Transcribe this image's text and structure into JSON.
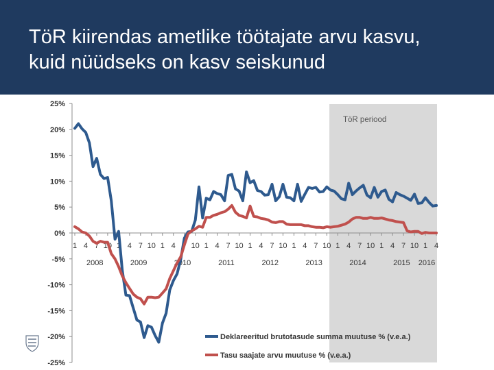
{
  "slide": {
    "title_line1": "TöR kiirendas ametlike töötajate arvu kasvu,",
    "title_line2": "kuid nüüdseks on kasv seiskunud",
    "bg_color": "#1f3a5f"
  },
  "chart_data": {
    "type": "line",
    "title": "",
    "xlabel": "",
    "ylabel": "",
    "ylim": [
      -25,
      25
    ],
    "yticks": [
      25,
      20,
      15,
      10,
      5,
      0,
      -5,
      -10,
      -15,
      -20,
      -25
    ],
    "ytick_labels": [
      "25%",
      "20%",
      "15%",
      "10%",
      "5%",
      "0%",
      "-5%",
      "-10%",
      "-15%",
      "-20%",
      "-25%"
    ],
    "month_tick_labels": [
      "1",
      "4",
      "7",
      "10",
      "1",
      "4",
      "7",
      "10",
      "1",
      "4",
      "7",
      "10",
      "1",
      "4",
      "7",
      "10",
      "1",
      "4",
      "7",
      "10",
      "1",
      "4",
      "7",
      "10",
      "1",
      "4",
      "7",
      "10",
      "1",
      "4",
      "7",
      "10",
      "1",
      "4"
    ],
    "year_labels": [
      "2008",
      "2009",
      "2010",
      "2011",
      "2012",
      "2013",
      "2014",
      "2015",
      "2016"
    ],
    "x_start": "2008-01",
    "x_end": "2016-04",
    "grid": false,
    "legend_position": "bottom-right",
    "shaded_region": {
      "label": "TöR periood",
      "start": "2014-01",
      "end": "2016-04",
      "color": "#d9d9d9"
    },
    "series": [
      {
        "name": "Deklareeritud brutotasude summa muutuse % (v.e.a.)",
        "color": "#2e5a8e",
        "values": [
          20.2,
          21.1,
          20.1,
          19.4,
          17.4,
          12.8,
          14.4,
          11.3,
          10.5,
          10.7,
          6.2,
          -1.2,
          0.3,
          -7.2,
          -12.0,
          -12.1,
          -14.5,
          -16.8,
          -17.2,
          -20.2,
          -17.9,
          -18.2,
          -19.8,
          -21.1,
          -17.4,
          -15.5,
          -11.0,
          -9.2,
          -7.9,
          -5.1,
          -1.0,
          0.2,
          0.3,
          2.5,
          8.9,
          2.9,
          6.7,
          6.4,
          8.0,
          7.6,
          7.4,
          6.2,
          11.1,
          11.3,
          8.5,
          8.1,
          6.2,
          11.8,
          9.7,
          10.1,
          8.2,
          8.0,
          7.3,
          7.4,
          9.4,
          6.2,
          7.0,
          9.4,
          6.9,
          6.8,
          6.2,
          9.4,
          6.1,
          7.5,
          8.8,
          8.6,
          8.8,
          7.9,
          8.0,
          8.9,
          8.3,
          8.1,
          7.4,
          6.6,
          6.4,
          9.6,
          7.4,
          8.1,
          8.7,
          9.2,
          7.3,
          6.8,
          8.8,
          6.9,
          8.0,
          8.3,
          6.5,
          6.0,
          7.8,
          7.4,
          7.1,
          6.7,
          6.3,
          7.5,
          5.7,
          5.8,
          6.8,
          5.9,
          5.2,
          5.3
        ]
      },
      {
        "name": "Tasu saajate arvu muutuse % (v.e.a.)",
        "color": "#c0504d",
        "values": [
          1.2,
          0.8,
          0.2,
          0.0,
          -0.6,
          -1.6,
          -2.0,
          -1.6,
          -1.8,
          -1.8,
          -4.0,
          -5.0,
          -6.5,
          -8.3,
          -9.6,
          -10.7,
          -11.8,
          -12.4,
          -12.7,
          -13.7,
          -12.4,
          -12.4,
          -12.5,
          -12.4,
          -11.6,
          -10.8,
          -8.8,
          -7.3,
          -5.8,
          -4.6,
          -2.3,
          -0.2,
          0.4,
          0.8,
          1.3,
          1.1,
          3.0,
          3.0,
          3.4,
          3.6,
          3.9,
          4.1,
          4.6,
          5.3,
          4.0,
          3.4,
          3.2,
          2.9,
          5.2,
          3.2,
          3.1,
          2.8,
          2.7,
          2.5,
          2.1,
          2.0,
          2.2,
          2.2,
          1.7,
          1.6,
          1.6,
          1.6,
          1.6,
          1.4,
          1.4,
          1.2,
          1.1,
          1.1,
          1.0,
          1.2,
          1.1,
          1.2,
          1.3,
          1.5,
          1.7,
          2.1,
          2.7,
          3.0,
          3.0,
          2.8,
          2.8,
          3.0,
          2.8,
          2.8,
          2.9,
          2.7,
          2.5,
          2.4,
          2.2,
          2.1,
          2.0,
          0.4,
          0.2,
          0.3,
          0.3,
          -0.1,
          0.1,
          0.0,
          0.0,
          0.0
        ]
      }
    ]
  }
}
